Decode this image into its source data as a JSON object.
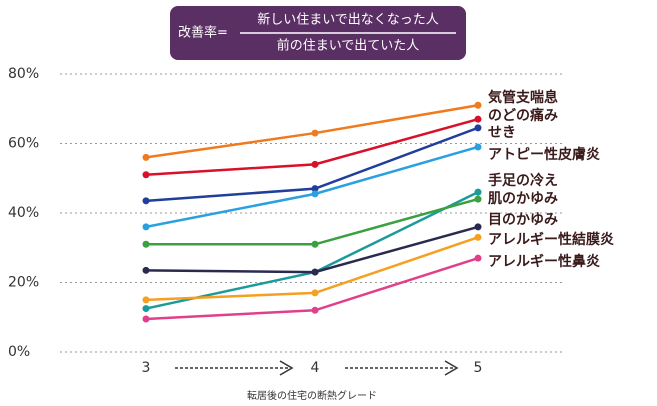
{
  "chart_data": {
    "type": "line",
    "formula": {
      "label": "改善率=",
      "numerator": "新しい住まいで出なくなった人",
      "denominator": "前の住まいで出ていた人"
    },
    "xlabel": "転居後の住宅の断熱グレード",
    "categories": [
      "3",
      "4",
      "5"
    ],
    "ylim": [
      0,
      80
    ],
    "yticks": [
      {
        "value": 0,
        "label": "0%"
      },
      {
        "value": 20,
        "label": "20%"
      },
      {
        "value": 40,
        "label": "40%"
      },
      {
        "value": 60,
        "label": "60%"
      },
      {
        "value": 80,
        "label": "80%"
      }
    ],
    "grid": true,
    "series": [
      {
        "name": "気管支喘息",
        "color": "#f07a1e",
        "values": [
          56,
          63,
          71
        ]
      },
      {
        "name": "のどの痛み",
        "color": "#d8102a",
        "values": [
          51,
          54,
          67
        ]
      },
      {
        "name": "せき",
        "color": "#1f3f9a",
        "values": [
          43.5,
          47,
          64.5
        ]
      },
      {
        "name": "アトピー性皮膚炎",
        "color": "#2aa0e0",
        "values": [
          36,
          45.5,
          59
        ]
      },
      {
        "name": "手足の冷え",
        "color": "#1a9a9a",
        "values": [
          12.5,
          23,
          46
        ]
      },
      {
        "name": "肌のかゆみ",
        "color": "#3aa040",
        "values": [
          31,
          31,
          44
        ]
      },
      {
        "name": "目のかゆみ",
        "color": "#2a2a50",
        "values": [
          23.5,
          23,
          36
        ]
      },
      {
        "name": "アレルギー性結膜炎",
        "color": "#f5a020",
        "values": [
          15,
          17,
          33
        ]
      },
      {
        "name": "アレルギー性鼻炎",
        "color": "#e0408a",
        "values": [
          9.5,
          12,
          27
        ]
      }
    ]
  }
}
